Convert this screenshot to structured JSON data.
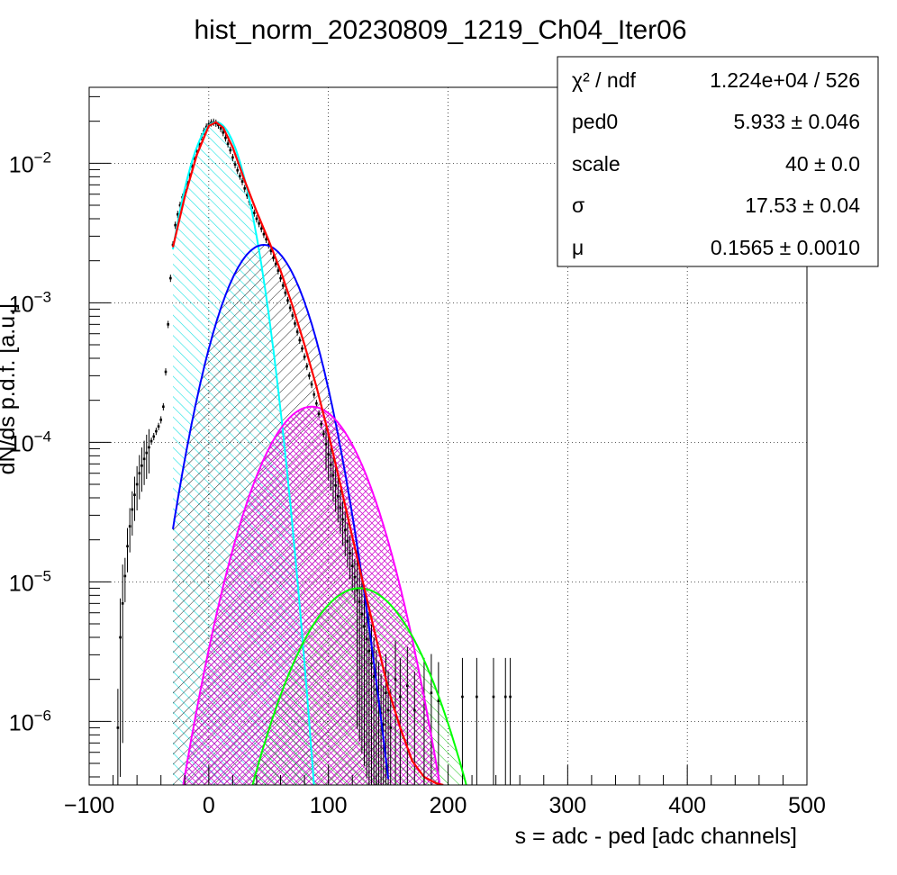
{
  "chart_data": {
    "type": "histogram",
    "title": "hist_norm_20230809_1219_Ch04_Iter06",
    "xlabel": "s = adc - ped [adc channels]",
    "ylabel": "dN/ds p.d.f. [a.u.]",
    "xlim": [
      -100,
      500
    ],
    "ylim": [
      3.5e-07,
      0.035
    ],
    "y_scale": "log",
    "grid": true,
    "x_ticks": [
      {
        "value": -100,
        "label": "−100"
      },
      {
        "value": 0,
        "label": "0"
      },
      {
        "value": 100,
        "label": "100"
      },
      {
        "value": 200,
        "label": "200"
      },
      {
        "value": 300,
        "label": "300"
      },
      {
        "value": 400,
        "label": "400"
      },
      {
        "value": 500,
        "label": "500"
      }
    ],
    "y_ticks": [
      {
        "value": 0.01,
        "base": "10",
        "exp": "−2"
      },
      {
        "value": 0.001,
        "base": "10",
        "exp": "−3"
      },
      {
        "value": 0.0001,
        "base": "10",
        "exp": "−4"
      },
      {
        "value": 1e-05,
        "base": "10",
        "exp": "−5"
      },
      {
        "value": 1e-06,
        "base": "10",
        "exp": "−6"
      }
    ],
    "stats_box": {
      "position": "top-right",
      "rows": [
        {
          "name": "χ² / ndf",
          "value": "1.224e+04 / 526"
        },
        {
          "name": "ped0",
          "value": "5.933 ± 0.046"
        },
        {
          "name": "scale",
          "value": "40 ± 0.0"
        },
        {
          "name": "σ",
          "value": "17.53 ± 0.04"
        },
        {
          "name": "μ",
          "value": "0.1565 ± 0.0010"
        }
      ]
    },
    "histogram": {
      "points": [
        [
          -76,
          9e-07
        ],
        [
          -74,
          4e-06
        ],
        [
          -72,
          7e-06
        ],
        [
          -70,
          1.1e-05
        ],
        [
          -68,
          1.8e-05
        ],
        [
          -66,
          2.5e-05
        ],
        [
          -64,
          3.3e-05
        ],
        [
          -62,
          4.2e-05
        ],
        [
          -60,
          5e-05
        ],
        [
          -58,
          6e-05
        ],
        [
          -56,
          6.8e-05
        ],
        [
          -54,
          7.6e-05
        ],
        [
          -52,
          8.4e-05
        ],
        [
          -50,
          9.2e-05
        ],
        [
          -48,
          0.000102
        ],
        [
          -46,
          0.00011
        ],
        [
          -44,
          0.00012
        ],
        [
          -42,
          0.00013
        ],
        [
          -40,
          0.000145
        ],
        [
          -38,
          0.00018
        ],
        [
          -36,
          0.00032
        ],
        [
          -34,
          0.0007
        ],
        [
          -32,
          0.0015
        ],
        [
          -30,
          0.0026
        ],
        [
          -28,
          0.0036
        ],
        [
          -26,
          0.0043
        ],
        [
          -24,
          0.005
        ],
        [
          -22,
          0.0057
        ],
        [
          -20,
          0.0064
        ],
        [
          -18,
          0.0073
        ],
        [
          -16,
          0.0083
        ],
        [
          -14,
          0.0095
        ],
        [
          -12,
          0.0108
        ],
        [
          -10,
          0.0122
        ],
        [
          -8,
          0.0138
        ],
        [
          -6,
          0.0155
        ],
        [
          -4,
          0.017
        ],
        [
          -2,
          0.0182
        ],
        [
          0,
          0.019
        ],
        [
          2,
          0.0195
        ],
        [
          4,
          0.0197
        ],
        [
          6,
          0.0194
        ],
        [
          8,
          0.0188
        ],
        [
          10,
          0.0178
        ],
        [
          12,
          0.0166
        ],
        [
          14,
          0.0152
        ],
        [
          16,
          0.0138
        ],
        [
          18,
          0.0124
        ],
        [
          20,
          0.011
        ],
        [
          22,
          0.0098
        ],
        [
          24,
          0.0089
        ],
        [
          26,
          0.0081
        ],
        [
          28,
          0.0074
        ],
        [
          30,
          0.0066
        ],
        [
          32,
          0.0059
        ],
        [
          34,
          0.0053
        ],
        [
          36,
          0.0048
        ],
        [
          38,
          0.0044
        ],
        [
          40,
          0.004
        ],
        [
          42,
          0.0037
        ],
        [
          44,
          0.0034
        ],
        [
          46,
          0.0031
        ],
        [
          48,
          0.00285
        ],
        [
          50,
          0.0026
        ],
        [
          52,
          0.00235
        ],
        [
          54,
          0.0021
        ],
        [
          56,
          0.0019
        ],
        [
          58,
          0.0017
        ],
        [
          60,
          0.0015
        ],
        [
          62,
          0.00133
        ],
        [
          64,
          0.00118
        ],
        [
          66,
          0.00104
        ],
        [
          68,
          0.00092
        ],
        [
          70,
          0.00081
        ],
        [
          72,
          0.00071
        ],
        [
          74,
          0.00062
        ],
        [
          76,
          0.00054
        ],
        [
          78,
          0.00047
        ],
        [
          80,
          0.00041
        ],
        [
          82,
          0.00035
        ],
        [
          84,
          0.0003
        ],
        [
          86,
          0.00026
        ],
        [
          88,
          0.00022
        ],
        [
          90,
          0.00019
        ],
        [
          92,
          0.00016
        ],
        [
          94,
          0.000135
        ],
        [
          96,
          0.000115
        ],
        [
          98,
          9.7e-05
        ],
        [
          100,
          8.2e-05
        ],
        [
          102,
          6.9e-05
        ],
        [
          104,
          5.8e-05
        ],
        [
          106,
          4.9e-05
        ],
        [
          108,
          4.1e-05
        ],
        [
          110,
          3.4e-05
        ],
        [
          112,
          2.8e-05
        ],
        [
          114,
          2.35e-05
        ],
        [
          116,
          1.95e-05
        ],
        [
          118,
          1.6e-05
        ],
        [
          120,
          1.3e-05
        ],
        [
          122,
          1.08e-05
        ],
        [
          124,
          8.8e-06
        ],
        [
          126,
          7.2e-06
        ],
        [
          128,
          5.9e-06
        ],
        [
          130,
          4.8e-06
        ],
        [
          132,
          3.9e-06
        ],
        [
          134,
          3.2e-06
        ],
        [
          136,
          2.6e-06
        ],
        [
          138,
          2.1e-06
        ],
        [
          140,
          1.7e-06
        ],
        [
          142,
          1.4e-06
        ],
        [
          144,
          1.15e-06
        ],
        [
          146,
          9.5e-07
        ],
        [
          148,
          1.6e-06
        ],
        [
          150,
          1.2e-06
        ],
        [
          152,
          9e-07
        ],
        [
          156,
          2e-06
        ],
        [
          160,
          1.5e-06
        ],
        [
          166,
          1.8e-06
        ],
        [
          172,
          1.2e-06
        ],
        [
          180,
          1.5e-06
        ],
        [
          186,
          1.6e-06
        ],
        [
          192,
          1.4e-06
        ],
        [
          212,
          1.5e-06
        ],
        [
          224,
          1.5e-06
        ],
        [
          238,
          1.5e-06
        ],
        [
          248,
          1.5e-06
        ],
        [
          252,
          1.5e-06
        ]
      ]
    },
    "fit": {
      "total": {
        "color": "#ff0000",
        "xrange": [
          -30,
          196
        ],
        "points": [
          [
            -30,
            0.0025
          ],
          [
            -20,
            0.0058
          ],
          [
            -10,
            0.0115
          ],
          [
            0,
            0.0185
          ],
          [
            6,
            0.0197
          ],
          [
            12,
            0.018
          ],
          [
            20,
            0.013
          ],
          [
            30,
            0.0075
          ],
          [
            40,
            0.0045
          ],
          [
            50,
            0.0028
          ],
          [
            60,
            0.0017
          ],
          [
            70,
            0.00095
          ],
          [
            80,
            0.0005
          ],
          [
            90,
            0.00025
          ],
          [
            100,
            0.000115
          ],
          [
            110,
            5e-05
          ],
          [
            120,
            2.1e-05
          ],
          [
            130,
            9e-06
          ],
          [
            140,
            3.9e-06
          ],
          [
            150,
            1.7e-06
          ],
          [
            160,
            9e-07
          ],
          [
            170,
            5.2e-07
          ],
          [
            180,
            4e-07
          ],
          [
            190,
            3.6e-07
          ],
          [
            196,
            3.5e-07
          ]
        ]
      },
      "components": [
        {
          "color": "#00ffff",
          "mu": 5.93,
          "sigma": 17.53,
          "amp": 0.0197,
          "xrange": [
            -30,
            100
          ]
        },
        {
          "color": "#0000ff",
          "mu": 45.93,
          "sigma": 24.79,
          "amp": 0.0026,
          "xrange": [
            -30,
            150
          ]
        },
        {
          "color": "#ff00ff",
          "mu": 85.93,
          "sigma": 30.36,
          "amp": 0.00018,
          "xrange": [
            -30,
            200
          ]
        },
        {
          "color": "#00ff00",
          "mu": 125.93,
          "sigma": 35.06,
          "amp": 9e-06,
          "xrange": [
            -30,
            250
          ]
        }
      ]
    }
  }
}
